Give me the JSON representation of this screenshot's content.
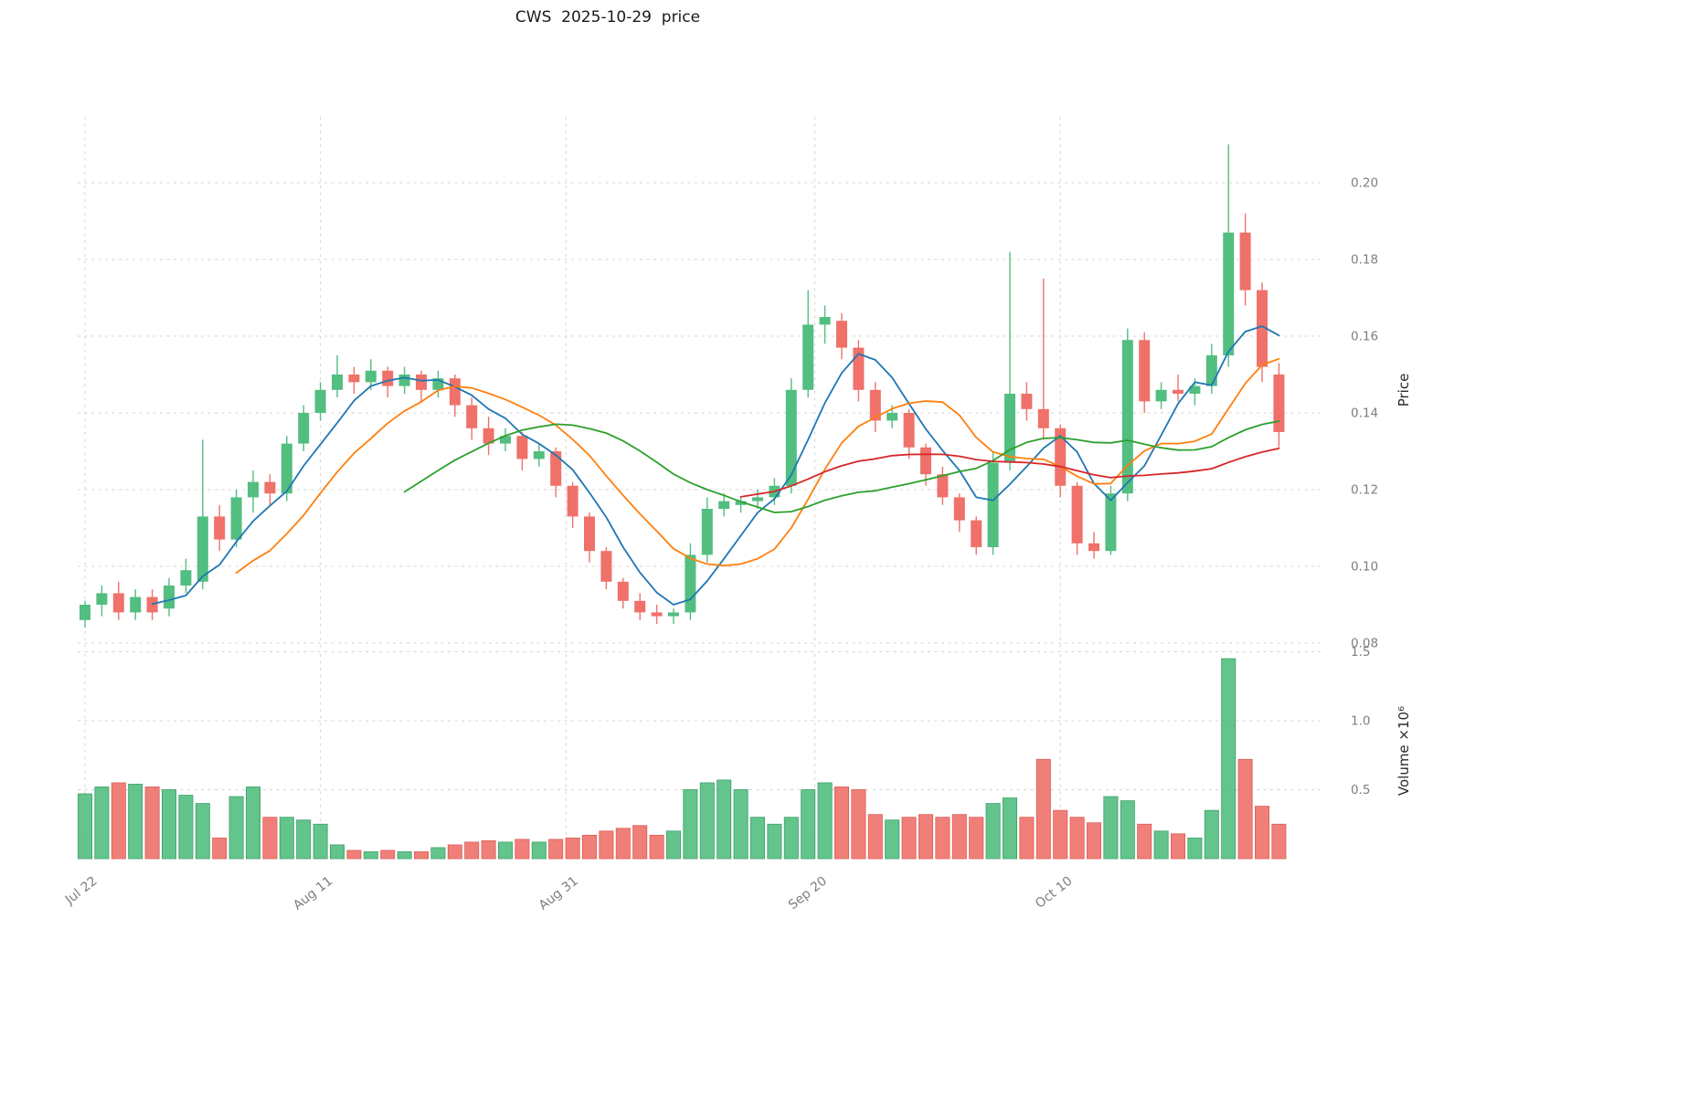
{
  "chart_data": {
    "type": "candlestick+volume",
    "title": "CWS  2025-10-29  price",
    "ylabel": "Price",
    "ylabel_volume": "Volume ×10⁶",
    "legend_position": "none",
    "grid": "dashed",
    "x_tick_labels": [
      "Jul 22",
      "Aug 11",
      "Aug 31",
      "Sep 20",
      "Oct 10"
    ],
    "x_tick_positions": [
      0,
      14,
      28.6,
      43.4,
      58
    ],
    "price_ticks": [
      0.08,
      0.1,
      0.12,
      0.14,
      0.16,
      0.18,
      0.2
    ],
    "price_tick_labels": [
      "0.08",
      "0.10",
      "0.12",
      "0.14",
      "0.16",
      "0.18",
      "0.20"
    ],
    "price_range": [
      0.078,
      0.218
    ],
    "volume_ticks": [
      0.5,
      1.0,
      1.5
    ],
    "volume_tick_labels": [
      "0.5",
      "1.0",
      "1.5"
    ],
    "volume_range": [
      0,
      1.55
    ],
    "moving_averages": [
      {
        "name": "ma-5",
        "window": 5,
        "color": "#1f77b4"
      },
      {
        "name": "ma-10",
        "window": 10,
        "color": "#ff7f0e"
      },
      {
        "name": "ma-20",
        "window": 20,
        "color": "#2ca02c"
      },
      {
        "name": "ma-40",
        "window": 40,
        "color": "#d62728"
      }
    ],
    "columns": [
      "date",
      "open",
      "high",
      "low",
      "close",
      "volume_millions"
    ],
    "candles": [
      [
        "2025-07-22",
        0.086,
        0.091,
        0.084,
        0.09,
        0.47
      ],
      [
        "2025-07-23",
        0.09,
        0.095,
        0.087,
        0.093,
        0.52
      ],
      [
        "2025-07-24",
        0.093,
        0.096,
        0.086,
        0.088,
        0.55
      ],
      [
        "2025-07-25",
        0.088,
        0.094,
        0.086,
        0.092,
        0.54
      ],
      [
        "2025-07-28",
        0.092,
        0.094,
        0.086,
        0.088,
        0.52
      ],
      [
        "2025-07-29",
        0.089,
        0.097,
        0.087,
        0.095,
        0.5
      ],
      [
        "2025-07-30",
        0.095,
        0.102,
        0.093,
        0.099,
        0.46
      ],
      [
        "2025-07-31",
        0.096,
        0.133,
        0.094,
        0.113,
        0.4
      ],
      [
        "2025-08-01",
        0.113,
        0.116,
        0.104,
        0.107,
        0.15
      ],
      [
        "2025-08-04",
        0.107,
        0.12,
        0.105,
        0.118,
        0.45
      ],
      [
        "2025-08-05",
        0.118,
        0.125,
        0.114,
        0.122,
        0.52
      ],
      [
        "2025-08-06",
        0.122,
        0.124,
        0.116,
        0.119,
        0.3
      ],
      [
        "2025-08-07",
        0.119,
        0.134,
        0.117,
        0.132,
        0.3
      ],
      [
        "2025-08-08",
        0.132,
        0.142,
        0.13,
        0.14,
        0.28
      ],
      [
        "2025-08-11",
        0.14,
        0.148,
        0.138,
        0.146,
        0.25
      ],
      [
        "2025-08-12",
        0.146,
        0.155,
        0.144,
        0.15,
        0.1
      ],
      [
        "2025-08-13",
        0.15,
        0.152,
        0.145,
        0.148,
        0.06
      ],
      [
        "2025-08-14",
        0.148,
        0.154,
        0.146,
        0.151,
        0.05
      ],
      [
        "2025-08-15",
        0.151,
        0.152,
        0.144,
        0.147,
        0.06
      ],
      [
        "2025-08-18",
        0.147,
        0.152,
        0.145,
        0.15,
        0.05
      ],
      [
        "2025-08-19",
        0.15,
        0.151,
        0.143,
        0.146,
        0.05
      ],
      [
        "2025-08-20",
        0.146,
        0.151,
        0.144,
        0.149,
        0.08
      ],
      [
        "2025-08-21",
        0.149,
        0.15,
        0.139,
        0.142,
        0.1
      ],
      [
        "2025-08-22",
        0.142,
        0.144,
        0.133,
        0.136,
        0.12
      ],
      [
        "2025-08-25",
        0.136,
        0.139,
        0.129,
        0.132,
        0.13
      ],
      [
        "2025-08-26",
        0.132,
        0.136,
        0.13,
        0.134,
        0.12
      ],
      [
        "2025-08-27",
        0.134,
        0.135,
        0.125,
        0.128,
        0.14
      ],
      [
        "2025-08-28",
        0.128,
        0.132,
        0.126,
        0.13,
        0.12
      ],
      [
        "2025-08-29",
        0.13,
        0.131,
        0.118,
        0.121,
        0.14
      ],
      [
        "2025-09-01",
        0.121,
        0.122,
        0.11,
        0.113,
        0.15
      ],
      [
        "2025-09-02",
        0.113,
        0.114,
        0.101,
        0.104,
        0.17
      ],
      [
        "2025-09-03",
        0.104,
        0.105,
        0.094,
        0.096,
        0.2
      ],
      [
        "2025-09-04",
        0.096,
        0.097,
        0.089,
        0.091,
        0.22
      ],
      [
        "2025-09-05",
        0.091,
        0.093,
        0.086,
        0.088,
        0.24
      ],
      [
        "2025-09-08",
        0.088,
        0.09,
        0.085,
        0.087,
        0.17
      ],
      [
        "2025-09-09",
        0.087,
        0.089,
        0.085,
        0.088,
        0.2
      ],
      [
        "2025-09-10",
        0.088,
        0.106,
        0.086,
        0.103,
        0.5
      ],
      [
        "2025-09-11",
        0.103,
        0.118,
        0.101,
        0.115,
        0.55
      ],
      [
        "2025-09-12",
        0.115,
        0.119,
        0.113,
        0.117,
        0.57
      ],
      [
        "2025-09-15",
        0.116,
        0.118,
        0.114,
        0.117,
        0.5
      ],
      [
        "2025-09-16",
        0.117,
        0.12,
        0.115,
        0.118,
        0.3
      ],
      [
        "2025-09-17",
        0.118,
        0.123,
        0.116,
        0.121,
        0.25
      ],
      [
        "2025-09-18",
        0.121,
        0.149,
        0.119,
        0.146,
        0.3
      ],
      [
        "2025-09-19",
        0.146,
        0.172,
        0.144,
        0.163,
        0.5
      ],
      [
        "2025-09-22",
        0.163,
        0.168,
        0.158,
        0.165,
        0.55
      ],
      [
        "2025-09-23",
        0.164,
        0.166,
        0.154,
        0.157,
        0.52
      ],
      [
        "2025-09-24",
        0.157,
        0.159,
        0.143,
        0.146,
        0.5
      ],
      [
        "2025-09-25",
        0.146,
        0.148,
        0.135,
        0.138,
        0.32
      ],
      [
        "2025-09-26",
        0.138,
        0.142,
        0.136,
        0.14,
        0.28
      ],
      [
        "2025-09-29",
        0.14,
        0.141,
        0.128,
        0.131,
        0.3
      ],
      [
        "2025-09-30",
        0.131,
        0.132,
        0.121,
        0.124,
        0.32
      ],
      [
        "2025-10-01",
        0.124,
        0.126,
        0.116,
        0.118,
        0.3
      ],
      [
        "2025-10-02",
        0.118,
        0.119,
        0.109,
        0.112,
        0.32
      ],
      [
        "2025-10-03",
        0.112,
        0.113,
        0.103,
        0.105,
        0.3
      ],
      [
        "2025-10-06",
        0.105,
        0.13,
        0.103,
        0.127,
        0.4
      ],
      [
        "2025-10-07",
        0.127,
        0.182,
        0.125,
        0.145,
        0.44
      ],
      [
        "2025-10-08",
        0.145,
        0.148,
        0.138,
        0.141,
        0.3
      ],
      [
        "2025-10-09",
        0.141,
        0.175,
        0.133,
        0.136,
        0.72
      ],
      [
        "2025-10-10",
        0.136,
        0.137,
        0.118,
        0.121,
        0.35
      ],
      [
        "2025-10-13",
        0.121,
        0.122,
        0.103,
        0.106,
        0.3
      ],
      [
        "2025-10-14",
        0.106,
        0.109,
        0.102,
        0.104,
        0.26
      ],
      [
        "2025-10-15",
        0.104,
        0.121,
        0.103,
        0.119,
        0.45
      ],
      [
        "2025-10-16",
        0.119,
        0.162,
        0.117,
        0.159,
        0.42
      ],
      [
        "2025-10-17",
        0.159,
        0.161,
        0.14,
        0.143,
        0.25
      ],
      [
        "2025-10-20",
        0.143,
        0.148,
        0.141,
        0.146,
        0.2
      ],
      [
        "2025-10-21",
        0.146,
        0.15,
        0.143,
        0.145,
        0.18
      ],
      [
        "2025-10-22",
        0.145,
        0.149,
        0.142,
        0.147,
        0.15
      ],
      [
        "2025-10-23",
        0.147,
        0.158,
        0.145,
        0.155,
        0.35
      ],
      [
        "2025-10-24",
        0.155,
        0.21,
        0.152,
        0.187,
        1.45
      ],
      [
        "2025-10-27",
        0.187,
        0.192,
        0.168,
        0.172,
        0.72
      ],
      [
        "2025-10-28",
        0.172,
        0.174,
        0.148,
        0.152,
        0.38
      ],
      [
        "2025-10-29",
        0.15,
        0.153,
        0.131,
        0.135,
        0.25
      ]
    ]
  },
  "colors": {
    "up": "#52be80",
    "down": "#ef716a",
    "up_edge": "#3da06a",
    "down_edge": "#d95d55",
    "grid": "#d4d4d4",
    "tick_label": "#7e7e7e",
    "title": "#1a1a1a",
    "background": "#ffffff"
  }
}
